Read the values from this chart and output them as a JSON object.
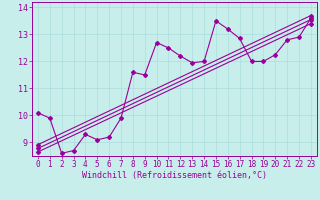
{
  "background_color": "#c8eeeb",
  "line_color": "#990099",
  "grid_color": "#aadddd",
  "xlim": [
    -0.5,
    23.5
  ],
  "ylim": [
    8.5,
    14.2
  ],
  "xticks": [
    0,
    1,
    2,
    3,
    4,
    5,
    6,
    7,
    8,
    9,
    10,
    11,
    12,
    13,
    14,
    15,
    16,
    17,
    18,
    19,
    20,
    21,
    22,
    23
  ],
  "yticks": [
    9,
    10,
    11,
    12,
    13,
    14
  ],
  "series1_x": [
    0,
    1,
    2,
    3,
    4,
    5,
    6,
    7,
    8,
    9,
    10,
    11,
    12,
    13,
    14,
    15,
    16,
    17,
    18,
    19,
    20,
    21,
    22,
    23
  ],
  "series1_y": [
    10.1,
    9.9,
    8.6,
    8.7,
    9.3,
    9.1,
    9.2,
    9.9,
    11.6,
    11.5,
    12.7,
    12.5,
    12.2,
    11.95,
    12.0,
    13.5,
    13.2,
    12.85,
    12.0,
    12.0,
    12.25,
    12.8,
    12.9,
    13.6
  ],
  "ref_lines": [
    {
      "x": [
        0,
        23
      ],
      "y": [
        8.65,
        13.4
      ]
    },
    {
      "x": [
        0,
        23
      ],
      "y": [
        8.78,
        13.55
      ]
    },
    {
      "x": [
        0,
        23
      ],
      "y": [
        8.92,
        13.7
      ]
    }
  ],
  "xlabel": "Windchill (Refroidissement éolien,°C)",
  "xlabel_fontsize": 6.0,
  "tick_fontsize": 5.5,
  "marker": "D",
  "markersize": 2.0,
  "linewidth": 0.8
}
